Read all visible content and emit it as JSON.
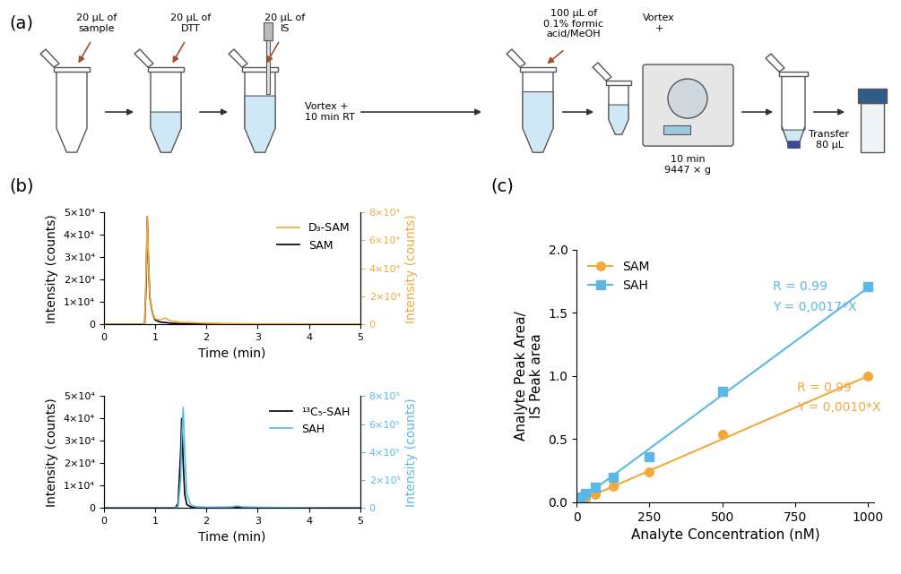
{
  "panel_labels": [
    "(a)",
    "(b)",
    "(c)"
  ],
  "workflow": {
    "additions": [
      "20 µL of\nsample",
      "20 µL of\nDTT",
      "20 µL of\nIS"
    ],
    "incubation": "Vortex +\n10 min RT",
    "solvent": "100 µL of\n0.1% formic\nacid/MeOH",
    "mix": "Vortex\n+",
    "centrifuge": "10 min\n9447 × g",
    "transfer": "Transfer\n80 µL"
  },
  "chart_data": [
    {
      "type": "line",
      "xlabel": "Time (min)",
      "ylabel": "Intensity (counts)",
      "y2label": "Intensity (counts)",
      "xlim": [
        0,
        5
      ],
      "xticks": [
        0,
        1,
        2,
        3,
        4,
        5
      ],
      "ylim": [
        0,
        50000
      ],
      "yticks": [
        0,
        {
          "value": 10000,
          "label": "1×10⁴"
        },
        {
          "value": 20000,
          "label": "2×10⁴"
        },
        {
          "value": 30000,
          "label": "3×10⁴"
        },
        {
          "value": 40000,
          "label": "4×10⁴"
        },
        {
          "value": 50000,
          "label": "5×10⁴"
        }
      ],
      "y2lim": [
        0,
        80000
      ],
      "y2ticks": [
        0,
        {
          "value": 20000,
          "label": "2×10⁴"
        },
        {
          "value": 40000,
          "label": "4×10⁴"
        },
        {
          "value": 60000,
          "label": "6×10⁴"
        },
        {
          "value": 80000,
          "label": "8×10⁴"
        }
      ],
      "legend": "upper right",
      "x": [
        0,
        0.5,
        0.75,
        0.8,
        0.83,
        0.85,
        0.87,
        0.9,
        0.95,
        1.0,
        1.1,
        1.2,
        1.3,
        1.5,
        2,
        2.5,
        3,
        3.5,
        4,
        4.5,
        5
      ],
      "series": [
        {
          "name": "D₃-SAM",
          "color": "#f2a93b",
          "axis": "y2",
          "values": [
            0,
            0,
            0,
            1000,
            40000,
            77000,
            50000,
            20000,
            8000,
            4000,
            3000,
            4500,
            2500,
            1500,
            800,
            500,
            300,
            300,
            200,
            200,
            200
          ]
        },
        {
          "name": "SAM",
          "color": "#000000",
          "values": [
            0,
            0,
            0,
            500,
            20000,
            48000,
            30000,
            12000,
            5000,
            2000,
            1000,
            800,
            500,
            300,
            200,
            100,
            100,
            100,
            100,
            100,
            100
          ]
        }
      ]
    },
    {
      "type": "line",
      "xlabel": "Time (min)",
      "ylabel": "Intensity (counts)",
      "y2label": "Intensity (counts)",
      "xlim": [
        0,
        5
      ],
      "xticks": [
        0,
        1,
        2,
        3,
        4,
        5
      ],
      "ylim": [
        0,
        50000
      ],
      "yticks": [
        0,
        {
          "value": 10000,
          "label": "1×10⁴"
        },
        {
          "value": 20000,
          "label": "2×10⁴"
        },
        {
          "value": 30000,
          "label": "3×10⁴"
        },
        {
          "value": 40000,
          "label": "4×10⁴"
        },
        {
          "value": 50000,
          "label": "5×10⁴"
        }
      ],
      "y2lim": [
        0,
        800000
      ],
      "y2ticks": [
        0,
        {
          "value": 200000,
          "label": "2×10⁵"
        },
        {
          "value": 400000,
          "label": "4×10⁵"
        },
        {
          "value": 600000,
          "label": "6×10⁵"
        },
        {
          "value": 800000,
          "label": "8×10⁵"
        }
      ],
      "legend": "upper right",
      "x": [
        0,
        0.5,
        1.0,
        1.3,
        1.4,
        1.45,
        1.5,
        1.52,
        1.55,
        1.58,
        1.62,
        1.7,
        1.8,
        2.0,
        2.5,
        2.6,
        2.7,
        3,
        3.5,
        4,
        4.5,
        5
      ],
      "series": [
        {
          "name": "¹³C₅-SAH",
          "color": "#000000",
          "values": [
            0,
            0,
            0,
            0,
            200,
            2000,
            25000,
            40000,
            20000,
            6000,
            1500,
            500,
            300,
            200,
            200,
            500,
            200,
            200,
            100,
            100,
            100,
            100
          ]
        },
        {
          "name": "SAH",
          "color": "#5bb8e6",
          "axis": "y2",
          "values": [
            0,
            0,
            0,
            0,
            2000,
            10000,
            200000,
            500000,
            720000,
            400000,
            100000,
            20000,
            8000,
            5000,
            8000,
            15000,
            8000,
            5000,
            3000,
            2000,
            1000,
            1000
          ]
        }
      ]
    },
    {
      "type": "scatter",
      "xlabel": "Analyte Concentration (nM)",
      "ylabel": "Analyte Peak Area/\nIS Peak area",
      "xlim": [
        0,
        1020
      ],
      "xticks": [
        0,
        250,
        500,
        750,
        1000
      ],
      "ylim": [
        0,
        2.0
      ],
      "yticks": [
        {
          "value": 0,
          "label": "0.0"
        },
        {
          "value": 0.5,
          "label": "0.5"
        },
        {
          "value": 1.0,
          "label": "1.0"
        },
        {
          "value": 1.5,
          "label": "1.5"
        },
        {
          "value": 2.0,
          "label": "2.0"
        }
      ],
      "legend": "upper left",
      "x": [
        3.9,
        7.8,
        15.6,
        31.25,
        62.5,
        125,
        250,
        500,
        1000
      ],
      "series": [
        {
          "name": "SAM",
          "color": "#f2a93b",
          "marker": "circle",
          "line_style": "solid",
          "values": [
            0.004,
            0.008,
            0.016,
            0.031,
            0.065,
            0.125,
            0.24,
            0.54,
            1.0
          ],
          "fit_slope": 0.001,
          "annotations": [
            "R = 0.99",
            "Y = 0,0010*X"
          ]
        },
        {
          "name": "SAH",
          "color": "#5bb8e6",
          "marker": "square",
          "line_style": "solid",
          "values": [
            0.01,
            0.02,
            0.04,
            0.07,
            0.12,
            0.2,
            0.36,
            0.88,
            1.71
          ],
          "fit_slope": 0.0017,
          "annotations": [
            "R = 0.99",
            "Y = 0,0017*X"
          ]
        }
      ]
    }
  ]
}
